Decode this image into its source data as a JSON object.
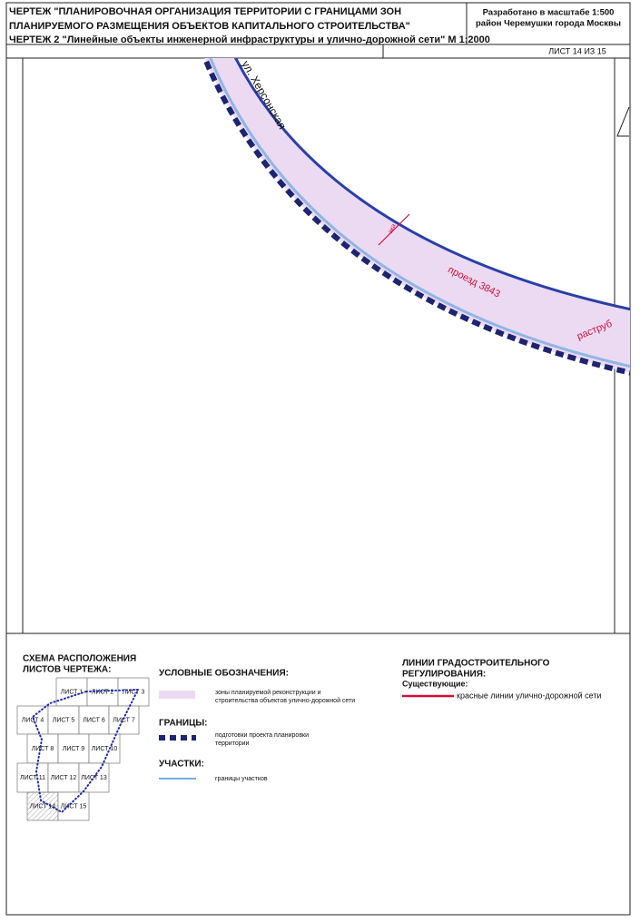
{
  "header": {
    "title_lines": [
      "ЧЕРТЕЖ \"ПЛАНИРОВОЧНАЯ ОРГАНИЗАЦИЯ ТЕРРИТОРИИ С ГРАНИЦАМИ ЗОН",
      "ПЛАНИРУЕМОГО РАЗМЕЩЕНИЯ ОБЪЕКТОВ КАПИТАЛЬНОГО СТРОИТЕЛЬСТВА\"",
      "ЧЕРТЕЖ 2 \"Линейные объекты инженерной инфраструктуры и улично-дорожной сети\" М 1:2000"
    ],
    "scale_lines": [
      "Разработано в масштабе 1:500",
      "район Черемушки города Москвы"
    ],
    "sheet": "ЛИСТ 14 ИЗ 15"
  },
  "map": {
    "labels": [
      "ул. Херсонская",
      "эка",
      "проезд 3843",
      "раструб"
    ]
  },
  "scheme": {
    "title_lines": [
      "СХЕМА РАСПОЛОЖЕНИЯ",
      "ЛИСТОВ ЧЕРТЕЖА:"
    ],
    "sheets": [
      "ЛИСТ 1",
      "ЛИСТ 2",
      "ЛИСТ 3",
      "ЛИСТ 4",
      "ЛИСТ 5",
      "ЛИСТ 6",
      "ЛИСТ 7",
      "ЛИСТ 8",
      "ЛИСТ 9",
      "ЛИСТ 10",
      "ЛИСТ 11",
      "ЛИСТ 12",
      "ЛИСТ 13",
      "ЛИСТ 14",
      "ЛИСТ 15"
    ]
  },
  "legend": {
    "title": "УСЛОВНЫЕ ОБОЗНАЧЕНИЯ:",
    "zones_lines": [
      "зоны планируемой реконструкции и",
      "строительства объектов улично-дорожной сети"
    ],
    "borders_title": "ГРАНИЦЫ:",
    "borders_lines": [
      "подготовки проекта планировки",
      "территории"
    ],
    "plots_title": "УЧАСТКИ:",
    "plots": "границы участков"
  },
  "regulation": {
    "title_lines": [
      "ЛИНИИ ГРАДОСТРОИТЕЛЬНОГО",
      "РЕГУЛИРОВАНИЯ:"
    ],
    "existing": "Существующие:",
    "red_lines": "красные линии улично-дорожной сети"
  }
}
